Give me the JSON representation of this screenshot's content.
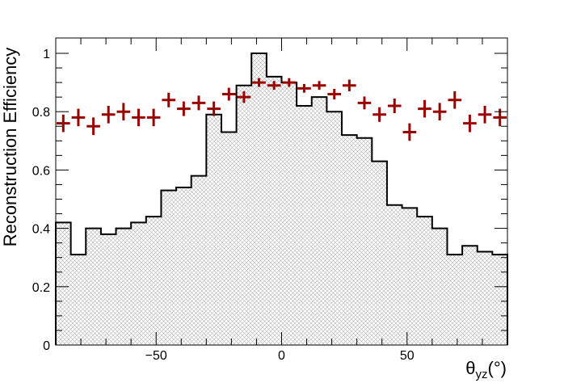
{
  "chart_data": {
    "type": "histogram",
    "title": "",
    "xlabel": "θ",
    "xlabel_sub": "yz",
    "xlabel_unit": "(°)",
    "ylabel": "Reconstruction Efficiency",
    "xlim": [
      -90,
      90
    ],
    "ylim": [
      0,
      1.05
    ],
    "x_ticks": [
      -50,
      0,
      50
    ],
    "x_tick_labels": [
      "−50",
      "0",
      "50"
    ],
    "y_ticks": [
      0,
      0.2,
      0.4,
      0.6,
      0.8,
      1
    ],
    "y_tick_labels": [
      "0",
      "0.2",
      "0.4",
      "0.6",
      "0.8",
      "1"
    ],
    "grid": false,
    "bin_edges": [
      -90,
      -84,
      -78,
      -72,
      -66,
      -60,
      -54,
      -48,
      -42,
      -36,
      -30,
      -24,
      -18,
      -12,
      -6,
      0,
      6,
      12,
      18,
      24,
      30,
      36,
      42,
      48,
      54,
      60,
      66,
      72,
      78,
      84,
      90
    ],
    "series": [
      {
        "kind": "hatched-histogram",
        "color": "#000000",
        "fill": "#c8c8c8",
        "values": [
          0.42,
          0.31,
          0.4,
          0.38,
          0.4,
          0.42,
          0.44,
          0.53,
          0.54,
          0.58,
          0.79,
          0.73,
          0.89,
          1.0,
          0.92,
          0.9,
          0.82,
          0.85,
          0.8,
          0.72,
          0.71,
          0.63,
          0.48,
          0.47,
          0.44,
          0.4,
          0.31,
          0.34,
          0.32,
          0.31
        ]
      },
      {
        "kind": "error-bar-points",
        "color": "#990000",
        "values": [
          0.76,
          0.78,
          0.75,
          0.79,
          0.8,
          0.78,
          0.78,
          0.84,
          0.81,
          0.83,
          0.81,
          0.86,
          0.85,
          0.9,
          0.89,
          0.9,
          0.88,
          0.89,
          0.86,
          0.89,
          0.83,
          0.79,
          0.82,
          0.73,
          0.81,
          0.8,
          0.84,
          0.76,
          0.79,
          0.78
        ],
        "errors": [
          0.03,
          0.03,
          0.03,
          0.03,
          0.03,
          0.03,
          0.03,
          0.025,
          0.025,
          0.025,
          0.025,
          0.022,
          0.02,
          0.015,
          0.015,
          0.015,
          0.015,
          0.015,
          0.018,
          0.02,
          0.022,
          0.025,
          0.025,
          0.03,
          0.03,
          0.03,
          0.03,
          0.03,
          0.03,
          0.03
        ]
      }
    ]
  }
}
